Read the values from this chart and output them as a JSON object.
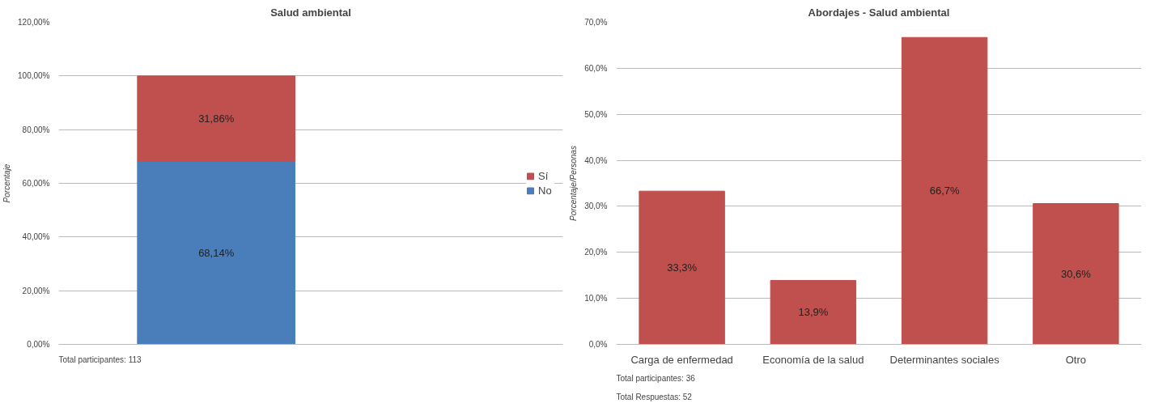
{
  "chart_data": [
    {
      "type": "bar",
      "title": "Salud ambiental",
      "ylabel": "Porcentaje",
      "categories": [
        null
      ],
      "stacked": true,
      "series": [
        {
          "name": "No",
          "color": "#4a7ebb",
          "values": [
            68.14
          ],
          "value_labels": [
            "68,14%"
          ]
        },
        {
          "name": "Sí",
          "color": "#c0504d",
          "values": [
            31.86
          ],
          "value_labels": [
            "31,86%"
          ]
        }
      ],
      "ylim": [
        0,
        120
      ],
      "yticks": [
        {
          "value": 0,
          "label": "0,00%"
        },
        {
          "value": 20,
          "label": "20,00%"
        },
        {
          "value": 40,
          "label": "40,00%"
        },
        {
          "value": 60,
          "label": "60,00%"
        },
        {
          "value": 80,
          "label": "80,00%"
        },
        {
          "value": 100,
          "label": "100,00%"
        },
        {
          "value": 120,
          "label": "120,00%"
        }
      ],
      "grid": "y",
      "legend": "right",
      "annotations": [
        "Total participantes: 113"
      ]
    },
    {
      "type": "bar",
      "title": "Abordajes - Salud ambiental",
      "ylabel": "Porcentaje/Personas",
      "categories": [
        "Carga de enfermedad",
        "Economía de la salud",
        "Determinantes sociales",
        "Otro"
      ],
      "series": [
        {
          "color": "#c0504d",
          "values": [
            33.3,
            13.9,
            66.7,
            30.6
          ],
          "value_labels": [
            "33,3%",
            "13,9%",
            "66,7%",
            "30,6%"
          ]
        }
      ],
      "ylim": [
        0,
        70
      ],
      "yticks": [
        {
          "value": 0,
          "label": "0,0%"
        },
        {
          "value": 10,
          "label": "10,0%"
        },
        {
          "value": 20,
          "label": "20,0%"
        },
        {
          "value": 30,
          "label": "30,0%"
        },
        {
          "value": 40,
          "label": "40,0%"
        },
        {
          "value": 50,
          "label": "50,0%"
        },
        {
          "value": 60,
          "label": "60,0%"
        },
        {
          "value": 70,
          "label": "70,0%"
        }
      ],
      "grid": "y",
      "annotations": [
        "Total participantes: 36",
        "Total Respuestas: 52"
      ]
    }
  ]
}
